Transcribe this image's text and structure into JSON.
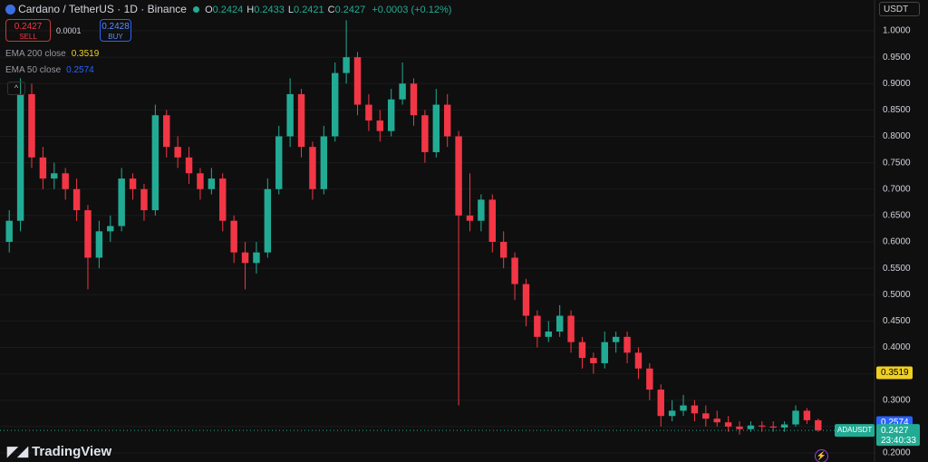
{
  "header": {
    "title": "Cardano / TetherUS · 1D · Binance",
    "ohlc": [
      {
        "label": "O",
        "value": "0.2424"
      },
      {
        "label": "H",
        "value": "0.2433"
      },
      {
        "label": "L",
        "value": "0.2421"
      },
      {
        "label": "C",
        "value": "0.2427"
      }
    ],
    "change": "+0.0003 (+0.12%)"
  },
  "trade_panel": {
    "sell_price": "0.2427",
    "sell_label": "SELL",
    "spread": "0.0001",
    "buy_price": "0.2428",
    "buy_label": "BUY"
  },
  "currency": "USDT",
  "branding": "TradingView",
  "chart_data": {
    "type": "candlestick",
    "up_color": "#22ab94",
    "down_color": "#f23645",
    "grid": true,
    "ylim": [
      0.1828,
      1.0584
    ],
    "yticks": [
      {
        "value": 0.2,
        "label": "0.2000"
      },
      {
        "value": 0.25,
        "label": "0.2500"
      },
      {
        "value": 0.3,
        "label": "0.3000"
      },
      {
        "value": 0.35,
        "label": "0.3500"
      },
      {
        "value": 0.4,
        "label": "0.4000"
      },
      {
        "value": 0.45,
        "label": "0.4500"
      },
      {
        "value": 0.5,
        "label": "0.5000"
      },
      {
        "value": 0.55,
        "label": "0.5500"
      },
      {
        "value": 0.6,
        "label": "0.6000"
      },
      {
        "value": 0.65,
        "label": "0.6500"
      },
      {
        "value": 0.7,
        "label": "0.7000"
      },
      {
        "value": 0.75,
        "label": "0.7500"
      },
      {
        "value": 0.8,
        "label": "0.8000"
      },
      {
        "value": 0.85,
        "label": "0.8500"
      },
      {
        "value": 0.9,
        "label": "0.9000"
      },
      {
        "value": 0.95,
        "label": "0.9500"
      },
      {
        "value": 1,
        "label": "1.0000"
      }
    ],
    "indicators": [
      {
        "name": "EMA 200 close",
        "value": 0.3519,
        "color": "#f0d020"
      },
      {
        "name": "EMA 50 close",
        "value": 0.2574,
        "color": "#2962ff"
      }
    ],
    "last_price": {
      "symbol": "ADAUSDT",
      "value": 0.2427,
      "countdown": "23:40:33"
    },
    "candles": [
      {
        "open": 0.6,
        "high": 0.66,
        "low": 0.58,
        "close": 0.64
      },
      {
        "open": 0.64,
        "high": 0.91,
        "low": 0.62,
        "close": 0.88
      },
      {
        "open": 0.88,
        "high": 0.9,
        "low": 0.74,
        "close": 0.76
      },
      {
        "open": 0.76,
        "high": 0.78,
        "low": 0.7,
        "close": 0.72
      },
      {
        "open": 0.72,
        "high": 0.75,
        "low": 0.7,
        "close": 0.73
      },
      {
        "open": 0.73,
        "high": 0.74,
        "low": 0.68,
        "close": 0.7
      },
      {
        "open": 0.7,
        "high": 0.72,
        "low": 0.64,
        "close": 0.66
      },
      {
        "open": 0.66,
        "high": 0.67,
        "low": 0.51,
        "close": 0.57
      },
      {
        "open": 0.57,
        "high": 0.64,
        "low": 0.55,
        "close": 0.62
      },
      {
        "open": 0.62,
        "high": 0.65,
        "low": 0.6,
        "close": 0.63
      },
      {
        "open": 0.63,
        "high": 0.74,
        "low": 0.62,
        "close": 0.72
      },
      {
        "open": 0.72,
        "high": 0.73,
        "low": 0.68,
        "close": 0.7
      },
      {
        "open": 0.7,
        "high": 0.71,
        "low": 0.64,
        "close": 0.66
      },
      {
        "open": 0.66,
        "high": 0.86,
        "low": 0.65,
        "close": 0.84
      },
      {
        "open": 0.84,
        "high": 0.85,
        "low": 0.76,
        "close": 0.78
      },
      {
        "open": 0.78,
        "high": 0.8,
        "low": 0.74,
        "close": 0.76
      },
      {
        "open": 0.76,
        "high": 0.78,
        "low": 0.71,
        "close": 0.73
      },
      {
        "open": 0.73,
        "high": 0.74,
        "low": 0.68,
        "close": 0.7
      },
      {
        "open": 0.7,
        "high": 0.74,
        "low": 0.69,
        "close": 0.72
      },
      {
        "open": 0.72,
        "high": 0.73,
        "low": 0.62,
        "close": 0.64
      },
      {
        "open": 0.64,
        "high": 0.65,
        "low": 0.56,
        "close": 0.58
      },
      {
        "open": 0.58,
        "high": 0.6,
        "low": 0.51,
        "close": 0.56
      },
      {
        "open": 0.56,
        "high": 0.6,
        "low": 0.54,
        "close": 0.58
      },
      {
        "open": 0.58,
        "high": 0.72,
        "low": 0.57,
        "close": 0.7
      },
      {
        "open": 0.7,
        "high": 0.82,
        "low": 0.69,
        "close": 0.8
      },
      {
        "open": 0.8,
        "high": 0.91,
        "low": 0.78,
        "close": 0.88
      },
      {
        "open": 0.88,
        "high": 0.89,
        "low": 0.76,
        "close": 0.78
      },
      {
        "open": 0.78,
        "high": 0.79,
        "low": 0.68,
        "close": 0.7
      },
      {
        "open": 0.7,
        "high": 0.82,
        "low": 0.69,
        "close": 0.8
      },
      {
        "open": 0.8,
        "high": 0.94,
        "low": 0.79,
        "close": 0.92
      },
      {
        "open": 0.92,
        "high": 1.02,
        "low": 0.9,
        "close": 0.95
      },
      {
        "open": 0.95,
        "high": 0.96,
        "low": 0.84,
        "close": 0.86
      },
      {
        "open": 0.86,
        "high": 0.88,
        "low": 0.81,
        "close": 0.83
      },
      {
        "open": 0.83,
        "high": 0.85,
        "low": 0.79,
        "close": 0.81
      },
      {
        "open": 0.81,
        "high": 0.89,
        "low": 0.8,
        "close": 0.87
      },
      {
        "open": 0.87,
        "high": 0.94,
        "low": 0.86,
        "close": 0.9
      },
      {
        "open": 0.9,
        "high": 0.91,
        "low": 0.82,
        "close": 0.84
      },
      {
        "open": 0.84,
        "high": 0.85,
        "low": 0.75,
        "close": 0.77
      },
      {
        "open": 0.77,
        "high": 0.89,
        "low": 0.76,
        "close": 0.86
      },
      {
        "open": 0.86,
        "high": 0.88,
        "low": 0.78,
        "close": 0.8
      },
      {
        "open": 0.8,
        "high": 0.81,
        "low": 0.29,
        "close": 0.65
      },
      {
        "open": 0.65,
        "high": 0.73,
        "low": 0.62,
        "close": 0.64
      },
      {
        "open": 0.64,
        "high": 0.69,
        "low": 0.62,
        "close": 0.68
      },
      {
        "open": 0.68,
        "high": 0.69,
        "low": 0.58,
        "close": 0.6
      },
      {
        "open": 0.6,
        "high": 0.62,
        "low": 0.55,
        "close": 0.57
      },
      {
        "open": 0.57,
        "high": 0.58,
        "low": 0.49,
        "close": 0.52
      },
      {
        "open": 0.52,
        "high": 0.53,
        "low": 0.44,
        "close": 0.46
      },
      {
        "open": 0.46,
        "high": 0.47,
        "low": 0.4,
        "close": 0.42
      },
      {
        "open": 0.42,
        "high": 0.45,
        "low": 0.41,
        "close": 0.43
      },
      {
        "open": 0.43,
        "high": 0.48,
        "low": 0.42,
        "close": 0.46
      },
      {
        "open": 0.46,
        "high": 0.47,
        "low": 0.39,
        "close": 0.41
      },
      {
        "open": 0.41,
        "high": 0.42,
        "low": 0.36,
        "close": 0.38
      },
      {
        "open": 0.38,
        "high": 0.39,
        "low": 0.35,
        "close": 0.37
      },
      {
        "open": 0.37,
        "high": 0.43,
        "low": 0.36,
        "close": 0.41
      },
      {
        "open": 0.41,
        "high": 0.43,
        "low": 0.39,
        "close": 0.42
      },
      {
        "open": 0.42,
        "high": 0.43,
        "low": 0.37,
        "close": 0.39
      },
      {
        "open": 0.39,
        "high": 0.4,
        "low": 0.34,
        "close": 0.36
      },
      {
        "open": 0.36,
        "high": 0.37,
        "low": 0.3,
        "close": 0.32
      },
      {
        "open": 0.32,
        "high": 0.33,
        "low": 0.25,
        "close": 0.27
      },
      {
        "open": 0.27,
        "high": 0.3,
        "low": 0.26,
        "close": 0.28
      },
      {
        "open": 0.28,
        "high": 0.31,
        "low": 0.27,
        "close": 0.29
      },
      {
        "open": 0.29,
        "high": 0.3,
        "low": 0.26,
        "close": 0.275
      },
      {
        "open": 0.275,
        "high": 0.29,
        "low": 0.25,
        "close": 0.265
      },
      {
        "open": 0.265,
        "high": 0.28,
        "low": 0.25,
        "close": 0.258
      },
      {
        "open": 0.258,
        "high": 0.27,
        "low": 0.24,
        "close": 0.25
      },
      {
        "open": 0.25,
        "high": 0.26,
        "low": 0.235,
        "close": 0.245
      },
      {
        "open": 0.245,
        "high": 0.26,
        "low": 0.24,
        "close": 0.252
      },
      {
        "open": 0.252,
        "high": 0.26,
        "low": 0.24,
        "close": 0.25
      },
      {
        "open": 0.25,
        "high": 0.26,
        "low": 0.24,
        "close": 0.248
      },
      {
        "open": 0.248,
        "high": 0.26,
        "low": 0.24,
        "close": 0.254
      },
      {
        "open": 0.254,
        "high": 0.29,
        "low": 0.25,
        "close": 0.28
      },
      {
        "open": 0.28,
        "high": 0.285,
        "low": 0.255,
        "close": 0.262
      },
      {
        "open": 0.262,
        "high": 0.265,
        "low": 0.24,
        "close": 0.243
      }
    ]
  }
}
